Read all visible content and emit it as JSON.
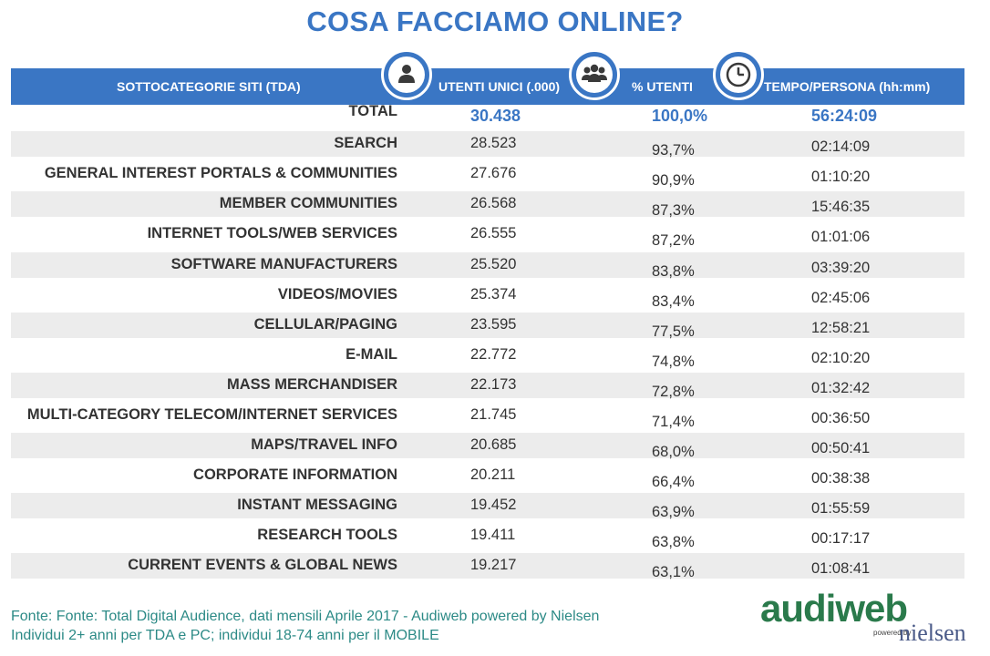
{
  "title": "COSA FACCIAMO ONLINE?",
  "header": {
    "category": "SOTTOCATEGORIE SITI  (TDA)",
    "unique_users": "UTENTI UNICI (.000)",
    "pct_users": "% UTENTI",
    "time_per_person": "TEMPO/PERSONA (hh:mm)"
  },
  "icons": [
    "person-icon",
    "group-icon",
    "clock-icon"
  ],
  "colors": {
    "accent": "#3a76c4",
    "footer_text": "#2c8a86",
    "row_shade": "#ececec"
  },
  "rows": [
    {
      "category": "TOTAL",
      "unique_users": "30.438",
      "pct_users": "100,0%",
      "time": "56:24:09"
    },
    {
      "category": "SEARCH",
      "unique_users": "28.523",
      "pct_users": "93,7%",
      "time": "02:14:09"
    },
    {
      "category": "GENERAL INTEREST PORTALS & COMMUNITIES",
      "unique_users": "27.676",
      "pct_users": "90,9%",
      "time": "01:10:20"
    },
    {
      "category": "MEMBER COMMUNITIES",
      "unique_users": "26.568",
      "pct_users": "87,3%",
      "time": "15:46:35"
    },
    {
      "category": "INTERNET TOOLS/WEB SERVICES",
      "unique_users": "26.555",
      "pct_users": "87,2%",
      "time": "01:01:06"
    },
    {
      "category": "SOFTWARE MANUFACTURERS",
      "unique_users": "25.520",
      "pct_users": "83,8%",
      "time": "03:39:20"
    },
    {
      "category": "VIDEOS/MOVIES",
      "unique_users": "25.374",
      "pct_users": "83,4%",
      "time": "02:45:06"
    },
    {
      "category": "CELLULAR/PAGING",
      "unique_users": "23.595",
      "pct_users": "77,5%",
      "time": "12:58:21"
    },
    {
      "category": "E-MAIL",
      "unique_users": "22.772",
      "pct_users": "74,8%",
      "time": "02:10:20"
    },
    {
      "category": "MASS MERCHANDISER",
      "unique_users": "22.173",
      "pct_users": "72,8%",
      "time": "01:32:42"
    },
    {
      "category": "MULTI-CATEGORY TELECOM/INTERNET SERVICES",
      "unique_users": "21.745",
      "pct_users": "71,4%",
      "time": "00:36:50"
    },
    {
      "category": "MAPS/TRAVEL INFO",
      "unique_users": "20.685",
      "pct_users": "68,0%",
      "time": "00:50:41"
    },
    {
      "category": "CORPORATE INFORMATION",
      "unique_users": "20.211",
      "pct_users": "66,4%",
      "time": "00:38:38"
    },
    {
      "category": "INSTANT MESSAGING",
      "unique_users": "19.452",
      "pct_users": "63,9%",
      "time": "01:55:59"
    },
    {
      "category": "RESEARCH TOOLS",
      "unique_users": "19.411",
      "pct_users": "63,8%",
      "time": "00:17:17"
    },
    {
      "category": "CURRENT EVENTS & GLOBAL NEWS",
      "unique_users": "19.217",
      "pct_users": "63,1%",
      "time": "01:08:41"
    }
  ],
  "footer": {
    "line1": "Fonte: Fonte: Total Digital Audience, dati mensili Aprile 2017 - Audiweb powered by Nielsen",
    "line2": "Individui 2+ anni per TDA e PC; individui 18-74 anni per il MOBILE"
  },
  "logo": {
    "audiweb": "audiweb",
    "powered_by": "powered by",
    "nielsen": "nielsen"
  }
}
